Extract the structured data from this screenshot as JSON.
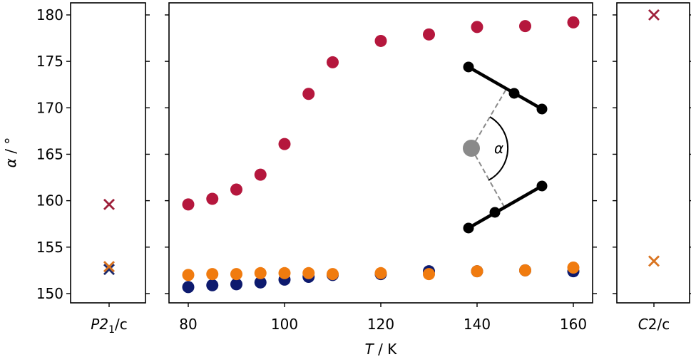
{
  "figure": {
    "ylabel_symbol": "α",
    "ylabel_unit": " / °",
    "xlabel_symbol": "T",
    "xlabel_unit": " / K",
    "left_panel_tick": {
      "base": "P2",
      "sub": "1",
      "rest": "/c"
    },
    "right_panel_tick": {
      "italic": "C",
      "rest": "2/c"
    },
    "inset_angle_label": "α"
  },
  "colors": {
    "crimson": "#b5173d",
    "navy": "#0d1a6e",
    "orange": "#f07b0f",
    "x_crimson": "#9e1f3a",
    "x_orange": "#d9731f",
    "x_navy": "#1e2a6b",
    "inset_black": "#000000",
    "inset_gray": "#8a8a8a"
  },
  "chart_data": {
    "type": "scatter",
    "xlabel": "T / K",
    "ylabel": "α / °",
    "xlim": [
      76,
      164
    ],
    "ylim": [
      149,
      181.3
    ],
    "xticks": [
      80,
      100,
      120,
      140,
      160
    ],
    "yticks": [
      150,
      155,
      160,
      165,
      170,
      175,
      180
    ],
    "grid": false,
    "series": [
      {
        "color": "#b5173d",
        "x": [
          80,
          85,
          90,
          95,
          100,
          105,
          110,
          120,
          130,
          140,
          150,
          160
        ],
        "y": [
          159.6,
          160.2,
          161.2,
          162.8,
          166.1,
          171.5,
          174.9,
          177.2,
          177.9,
          178.7,
          178.8,
          179.2
        ]
      },
      {
        "color": "#0d1a6e",
        "x": [
          80,
          85,
          90,
          95,
          100,
          105,
          110,
          120,
          130,
          140,
          150,
          160
        ],
        "y": [
          150.7,
          150.9,
          151.0,
          151.2,
          151.5,
          151.8,
          152.0,
          152.1,
          152.4,
          152.4,
          152.5,
          152.4
        ]
      },
      {
        "color": "#f07b0f",
        "x": [
          80,
          85,
          90,
          95,
          100,
          105,
          110,
          120,
          130,
          140,
          150,
          160
        ],
        "y": [
          152.0,
          152.1,
          152.1,
          152.2,
          152.2,
          152.2,
          152.1,
          152.2,
          152.1,
          152.4,
          152.5,
          152.8
        ]
      }
    ],
    "side_panels": [
      {
        "position": "left",
        "category": "P21/c",
        "markers": [
          {
            "color": "#9e1f3a",
            "y": 159.6
          },
          {
            "color": "#1e2a6b",
            "y": 152.6
          },
          {
            "color": "#d9731f",
            "y": 152.9
          }
        ]
      },
      {
        "position": "right",
        "category": "C2/c",
        "markers": [
          {
            "color": "#9e1f3a",
            "y": 180.0
          },
          {
            "color": "#d9731f",
            "y": 153.5
          }
        ]
      }
    ]
  }
}
